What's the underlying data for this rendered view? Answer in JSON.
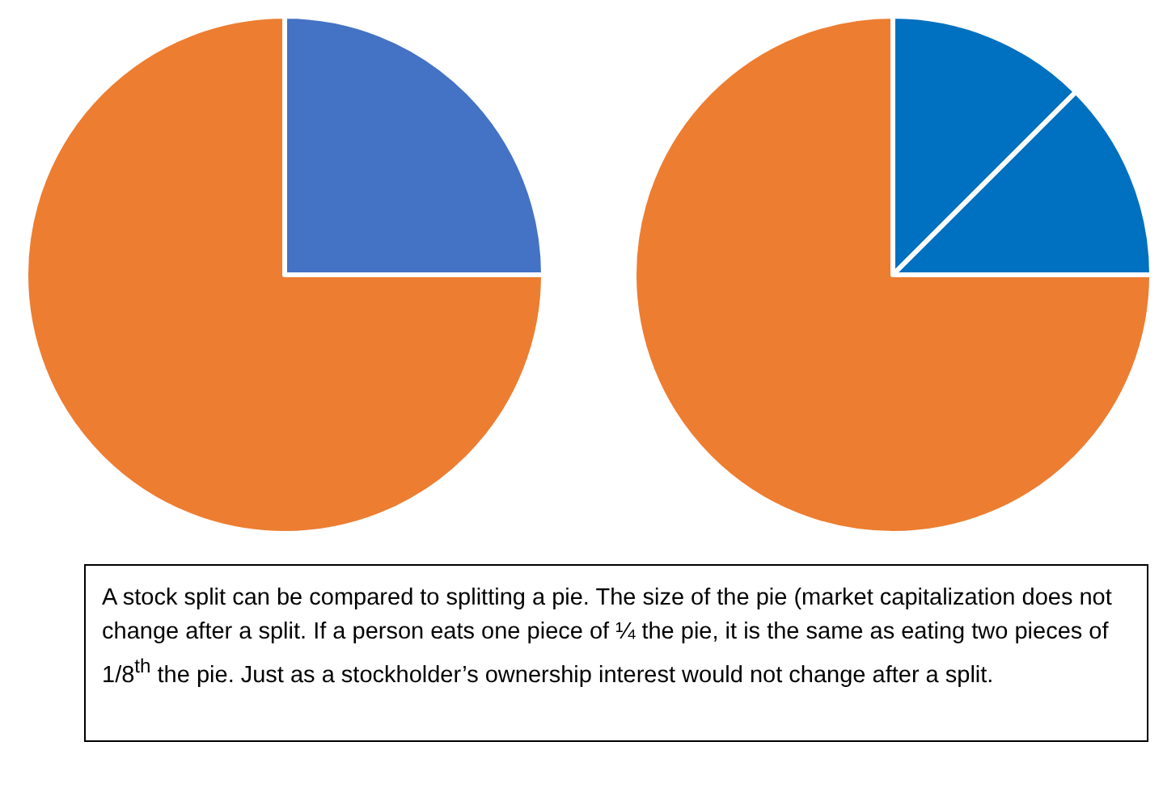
{
  "chart_data": [
    {
      "type": "pie",
      "categories": [
        null,
        null
      ],
      "values": [
        25,
        75
      ],
      "colors": [
        "#4472c4",
        "#ed7d31"
      ]
    },
    {
      "type": "pie",
      "categories": [
        null,
        null,
        null
      ],
      "values": [
        12.5,
        12.5,
        75
      ],
      "colors": [
        "#0070c0",
        "#0070c0",
        "#ed7d31"
      ]
    },
    {
      "type": "other",
      "annotations": [
        "A stock split can be compared to splitting a pie. The size of the pie (market capitalization does not change after a split. If a person eats one piece of ¼ the pie, it is the same as eating two pieces of 1/8$^{th}$ the pie. Just as a stockholder’s ownership interest would not change after a split."
      ]
    }
  ]
}
